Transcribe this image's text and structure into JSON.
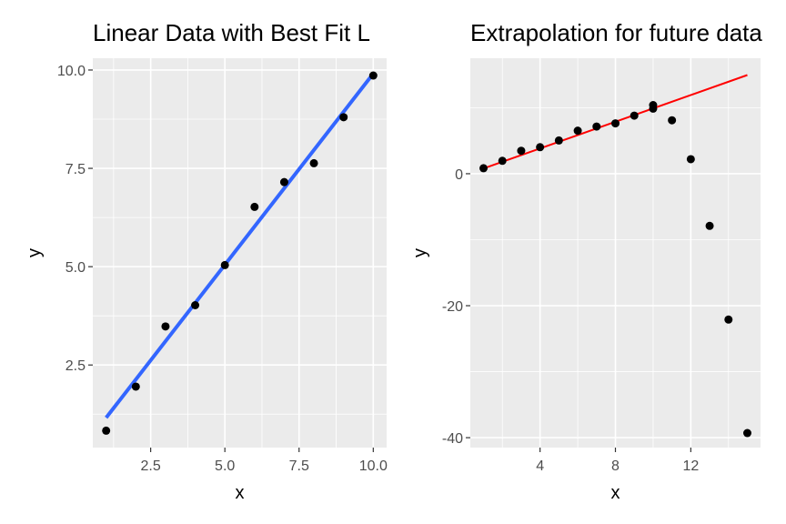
{
  "chart_data": [
    {
      "type": "scatter",
      "title": "Linear Data with Best Fit L",
      "xlabel": "x",
      "ylabel": "y",
      "xlim": [
        0.55,
        10.45
      ],
      "ylim": [
        0.4,
        10.3
      ],
      "xticks": [
        2.5,
        5.0,
        7.5,
        10.0
      ],
      "xtick_labels": [
        "2.5",
        "5.0",
        "7.5",
        "10.0"
      ],
      "yticks": [
        2.5,
        5.0,
        7.5,
        10.0
      ],
      "ytick_labels": [
        "2.5",
        "5.0",
        "7.5",
        "10.0"
      ],
      "grid": true,
      "background": "#ebebeb",
      "points": {
        "x": [
          1,
          2,
          3,
          4,
          5,
          6,
          7,
          8,
          9,
          10
        ],
        "y": [
          0.83,
          1.95,
          3.48,
          4.02,
          5.04,
          6.52,
          7.15,
          7.63,
          8.8,
          9.86
        ],
        "color": "#000000"
      },
      "fit_line": {
        "x": [
          1,
          10
        ],
        "y": [
          1.16,
          9.91
        ],
        "color": "#3366ff"
      }
    },
    {
      "type": "scatter",
      "title": "Extrapolation for future data",
      "xlabel": "x",
      "ylabel": "y",
      "xlim": [
        0.3,
        15.7
      ],
      "ylim": [
        -41.5,
        17.5
      ],
      "xticks": [
        4,
        8,
        12
      ],
      "xtick_labels": [
        "4",
        "8",
        "12"
      ],
      "yticks": [
        -40,
        -20,
        0
      ],
      "ytick_labels": [
        "-40",
        "-20",
        "0"
      ],
      "grid": true,
      "background": "#ebebeb",
      "points": {
        "x": [
          1,
          2,
          3,
          4,
          5,
          6,
          7,
          8,
          9,
          10,
          10,
          11,
          12,
          13,
          14,
          15
        ],
        "y": [
          0.83,
          1.95,
          3.48,
          4.02,
          5.04,
          6.52,
          7.15,
          7.63,
          8.8,
          10.4,
          9.86,
          8.1,
          2.2,
          -7.9,
          -22.1,
          -39.3
        ],
        "color": "#000000"
      },
      "fit_line": {
        "x": [
          1,
          15
        ],
        "y": [
          0.8,
          14.95
        ],
        "color": "#ff0000"
      }
    }
  ]
}
